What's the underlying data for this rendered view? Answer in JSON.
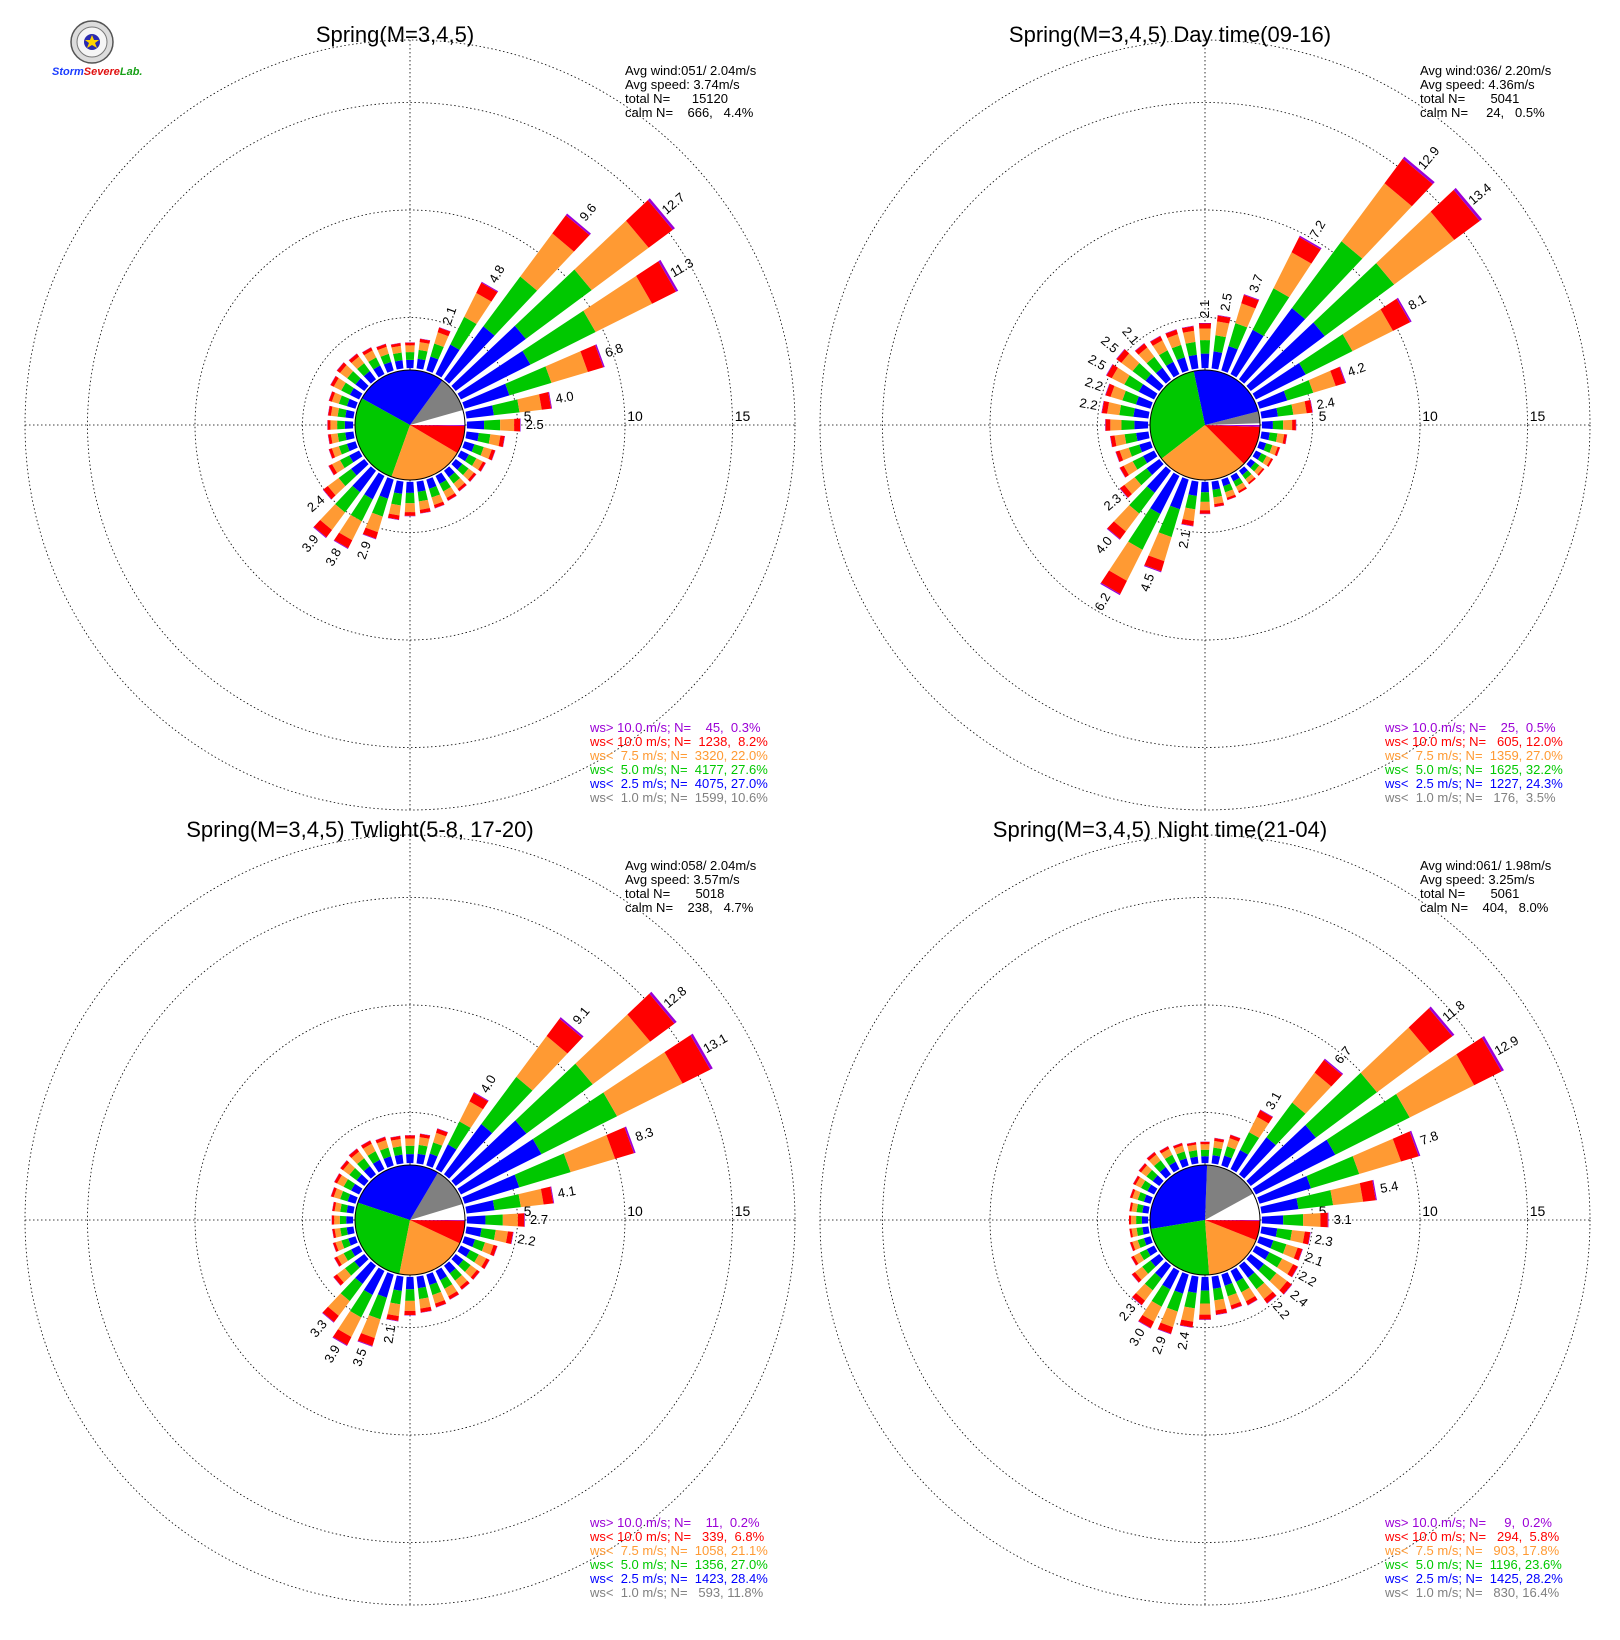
{
  "logo": {
    "text_severe": "Severe",
    "text_storm": "Storm",
    "text_lab": "Lab."
  },
  "colors": {
    "gt10": "#9b00d6",
    "lt10": "#ff0000",
    "lt7_5": "#ff9a33",
    "lt5": "#00c800",
    "lt2_5": "#0000ff",
    "lt1": "#808080",
    "calm": "#ffffff"
  },
  "chart_data": [
    {
      "type": "windrose",
      "title": "Spring(M=3,4,5)",
      "ring_labels": [
        "5",
        "10",
        "15"
      ],
      "stats": [
        "Avg wind:051/ 2.04m/s",
        "Avg speed: 3.74m/s",
        "total N=      15120",
        "calm N=    666,   4.4%"
      ],
      "legend": [
        {
          "text": "ws> 10.0 m/s; N=    45,  0.3%",
          "key": "gt10"
        },
        {
          "text": "ws< 10.0 m/s; N=  1238,  8.2%",
          "key": "lt10"
        },
        {
          "text": "ws<  7.5 m/s; N=  3320, 22.0%",
          "key": "lt7_5"
        },
        {
          "text": "ws<  5.0 m/s; N=  4177, 27.6%",
          "key": "lt5"
        },
        {
          "text": "ws<  2.5 m/s; N=  4075, 27.0%",
          "key": "lt2_5"
        },
        {
          "text": "ws<  1.0 m/s; N=  1599, 10.6%",
          "key": "lt1"
        }
      ],
      "pie": [
        4.4,
        10.6,
        27.0,
        27.6,
        22.0,
        8.2,
        0.3
      ],
      "directions_deg": [
        0,
        10,
        20,
        30,
        40,
        50,
        60,
        70,
        80,
        90,
        100,
        110,
        120,
        130,
        140,
        150,
        160,
        170,
        180,
        190,
        200,
        210,
        220,
        230,
        240,
        250,
        260,
        270,
        280,
        290,
        300,
        310,
        320,
        330,
        340,
        350
      ],
      "totals": [
        1.2,
        1.4,
        2.1,
        4.8,
        9.6,
        12.7,
        11.3,
        6.8,
        4.0,
        2.5,
        1.8,
        1.5,
        1.3,
        1.2,
        1.2,
        1.3,
        1.4,
        1.5,
        1.6,
        1.8,
        2.9,
        3.8,
        3.9,
        2.4,
        1.6,
        1.3,
        1.2,
        1.2,
        1.2,
        1.3,
        1.5,
        1.6,
        1.5,
        1.4,
        1.3,
        1.2
      ],
      "labeled": [
        2.1,
        4.8,
        9.6,
        12.7,
        11.3,
        6.8,
        4.0,
        2.5,
        2.4,
        3.9,
        3.8,
        2.9
      ]
    },
    {
      "type": "windrose",
      "title": "Spring(M=3,4,5) Day time(09-16)",
      "ring_labels": [
        "5",
        "10",
        "15"
      ],
      "stats": [
        "Avg wind:036/ 2.20m/s",
        "Avg speed: 4.36m/s",
        "total N=       5041",
        "calm N=     24,   0.5%"
      ],
      "legend": [
        {
          "text": "ws> 10.0 m/s; N=    25,  0.5%",
          "key": "gt10"
        },
        {
          "text": "ws< 10.0 m/s; N=   605, 12.0%",
          "key": "lt10"
        },
        {
          "text": "ws<  7.5 m/s; N=  1359, 27.0%",
          "key": "lt7_5"
        },
        {
          "text": "ws<  5.0 m/s; N=  1625, 32.2%",
          "key": "lt5"
        },
        {
          "text": "ws<  2.5 m/s; N=  1227, 24.3%",
          "key": "lt2_5"
        },
        {
          "text": "ws<  1.0 m/s; N=   176,  3.5%",
          "key": "lt1"
        }
      ],
      "pie": [
        0.5,
        3.5,
        24.3,
        32.2,
        27.0,
        12.0,
        0.5
      ],
      "directions_deg": [
        0,
        10,
        20,
        30,
        40,
        50,
        60,
        70,
        80,
        90,
        100,
        110,
        120,
        130,
        140,
        150,
        160,
        170,
        180,
        190,
        200,
        210,
        220,
        230,
        240,
        250,
        260,
        270,
        280,
        290,
        300,
        310,
        320,
        330,
        340,
        350
      ],
      "totals": [
        2.1,
        2.5,
        3.7,
        7.2,
        12.9,
        13.4,
        8.1,
        4.2,
        2.4,
        1.6,
        1.2,
        1.0,
        0.9,
        0.8,
        0.8,
        0.9,
        1.0,
        1.2,
        1.5,
        2.1,
        4.5,
        6.2,
        4.0,
        2.3,
        1.8,
        1.7,
        1.8,
        2.0,
        2.2,
        2.2,
        2.5,
        2.5,
        2.1,
        2.0,
        2.0,
        2.0
      ],
      "labeled": [
        2.5,
        3.7,
        7.2,
        12.9,
        13.4,
        8.1,
        4.2,
        2.4,
        2.1,
        4.5,
        6.2,
        4.0,
        2.3,
        2.2,
        2.5,
        2.5,
        2.1
      ]
    },
    {
      "type": "windrose",
      "title": "Spring(M=3,4,5) Twlight(5-8, 17-20)",
      "ring_labels": [
        "5",
        "10",
        "15"
      ],
      "stats": [
        "Avg wind:058/ 2.04m/s",
        "Avg speed: 3.57m/s",
        "total N=       5018",
        "calm N=    238,   4.7%"
      ],
      "legend": [
        {
          "text": "ws> 10.0 m/s; N=    11,  0.2%",
          "key": "gt10"
        },
        {
          "text": "ws< 10.0 m/s; N=   339,  6.8%",
          "key": "lt10"
        },
        {
          "text": "ws<  7.5 m/s; N=  1058, 21.1%",
          "key": "lt7_5"
        },
        {
          "text": "ws<  5.0 m/s; N=  1356, 27.0%",
          "key": "lt5"
        },
        {
          "text": "ws<  2.5 m/s; N=  1423, 28.4%",
          "key": "lt2_5"
        },
        {
          "text": "ws<  1.0 m/s; N=   593, 11.8%",
          "key": "lt1"
        }
      ],
      "pie": [
        4.7,
        11.8,
        28.4,
        27.0,
        21.1,
        6.8,
        0.2
      ],
      "directions_deg": [
        0,
        10,
        20,
        30,
        40,
        50,
        60,
        70,
        80,
        90,
        100,
        110,
        120,
        130,
        140,
        150,
        160,
        170,
        180,
        190,
        200,
        210,
        220,
        230,
        240,
        250,
        260,
        270,
        280,
        290,
        300,
        310,
        320,
        330,
        340,
        350
      ],
      "totals": [
        1.3,
        1.4,
        1.8,
        4.0,
        9.1,
        12.8,
        13.1,
        8.3,
        4.1,
        2.7,
        2.2,
        1.6,
        1.5,
        1.4,
        1.4,
        1.5,
        1.6,
        1.7,
        1.8,
        2.1,
        3.5,
        3.9,
        3.3,
        1.8,
        1.3,
        1.1,
        1.0,
        1.0,
        1.0,
        1.2,
        1.3,
        1.4,
        1.5,
        1.5,
        1.4,
        1.3
      ],
      "labeled": [
        4.0,
        9.1,
        12.8,
        13.1,
        8.3,
        4.1,
        2.7,
        2.2,
        2.1,
        3.5,
        3.9,
        3.3
      ]
    },
    {
      "type": "windrose",
      "title": "Spring(M=3,4,5) Night time(21-04)",
      "ring_labels": [
        "5",
        "10",
        "15"
      ],
      "stats": [
        "Avg wind:061/ 1.98m/s",
        "Avg speed: 3.25m/s",
        "total N=       5061",
        "calm N=    404,   8.0%"
      ],
      "legend": [
        {
          "text": "ws> 10.0 m/s; N=     9,  0.2%",
          "key": "gt10"
        },
        {
          "text": "ws< 10.0 m/s; N=   294,  5.8%",
          "key": "lt10"
        },
        {
          "text": "ws<  7.5 m/s; N=   903, 17.8%",
          "key": "lt7_5"
        },
        {
          "text": "ws<  5.0 m/s; N=  1196, 23.6%",
          "key": "lt5"
        },
        {
          "text": "ws<  2.5 m/s; N=  1425, 28.2%",
          "key": "lt2_5"
        },
        {
          "text": "ws<  1.0 m/s; N=   830, 16.4%",
          "key": "lt1"
        }
      ],
      "pie": [
        8.0,
        16.4,
        28.2,
        23.6,
        17.8,
        5.8,
        0.2
      ],
      "directions_deg": [
        0,
        10,
        20,
        30,
        40,
        50,
        60,
        70,
        80,
        90,
        100,
        110,
        120,
        130,
        140,
        150,
        160,
        170,
        180,
        190,
        200,
        210,
        220,
        230,
        240,
        250,
        260,
        270,
        280,
        290,
        300,
        310,
        320,
        330,
        340,
        350
      ],
      "totals": [
        1.0,
        1.2,
        1.5,
        3.1,
        6.7,
        11.8,
        12.9,
        7.8,
        5.4,
        3.1,
        2.3,
        2.1,
        2.2,
        2.4,
        2.2,
        1.8,
        1.7,
        1.8,
        2.0,
        2.4,
        2.9,
        3.0,
        2.3,
        1.6,
        1.2,
        1.0,
        0.9,
        0.9,
        0.9,
        1.0,
        1.1,
        1.2,
        1.3,
        1.2,
        1.1,
        1.0
      ],
      "labeled": [
        3.1,
        6.7,
        11.8,
        12.9,
        7.8,
        5.4,
        3.1,
        2.3,
        2.1,
        2.4,
        2.2,
        2.4,
        2.9,
        3.0,
        2.3
      ]
    }
  ]
}
